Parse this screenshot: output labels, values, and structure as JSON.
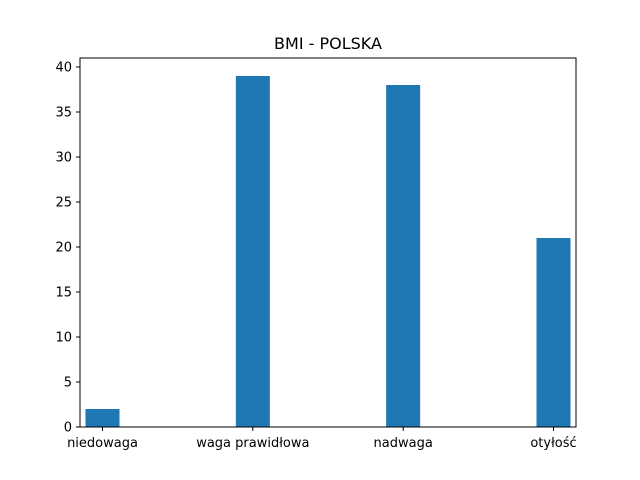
{
  "chart_data": {
    "type": "bar",
    "title": "BMI - POLSKA",
    "xlabel": "",
    "ylabel": "",
    "categories": [
      "niedowaga",
      "waga prawidłowa",
      "nadwaga",
      "otyłość"
    ],
    "values": [
      2,
      39,
      38,
      21
    ],
    "ylim": [
      0,
      41
    ],
    "yticks": [
      0,
      5,
      10,
      15,
      20,
      25,
      30,
      35,
      40
    ],
    "bar_color": "#1f77b4",
    "grid": false
  }
}
